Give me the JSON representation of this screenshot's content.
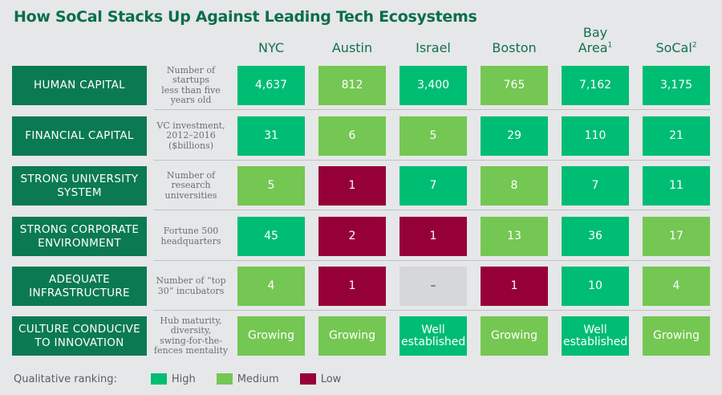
{
  "title": "How SoCal Stacks Up Against Leading Tech Ecosystems",
  "colors": {
    "high": "#00bd74",
    "medium": "#74c752",
    "low": "#960039",
    "none": "#d6d7d8",
    "label_bg": "#0b7a52",
    "title": "#0a6e4b"
  },
  "columns": [
    {
      "line1": "",
      "line2": "NYC",
      "sup": ""
    },
    {
      "line1": "",
      "line2": "Austin",
      "sup": ""
    },
    {
      "line1": "",
      "line2": "Israel",
      "sup": ""
    },
    {
      "line1": "",
      "line2": "Boston",
      "sup": ""
    },
    {
      "line1": "Bay",
      "line2": "Area",
      "sup": "1"
    },
    {
      "line1": "",
      "line2": "SoCal",
      "sup": "2"
    }
  ],
  "rows": [
    {
      "label_lines": [
        "HUMAN CAPITAL"
      ],
      "desc_lines": [
        "Number of",
        "startups",
        "less than five",
        "years old"
      ],
      "cells": [
        {
          "value": "4,637",
          "rank": "high"
        },
        {
          "value": "812",
          "rank": "medium"
        },
        {
          "value": "3,400",
          "rank": "high"
        },
        {
          "value": "765",
          "rank": "medium"
        },
        {
          "value": "7,162",
          "rank": "high"
        },
        {
          "value": "3,175",
          "rank": "high"
        }
      ]
    },
    {
      "label_lines": [
        "FINANCIAL CAPITAL"
      ],
      "desc_lines": [
        "VC investment,",
        "2012–2016",
        "($billions)"
      ],
      "cells": [
        {
          "value": "31",
          "rank": "high"
        },
        {
          "value": "6",
          "rank": "medium"
        },
        {
          "value": "5",
          "rank": "medium"
        },
        {
          "value": "29",
          "rank": "high"
        },
        {
          "value": "110",
          "rank": "high"
        },
        {
          "value": "21",
          "rank": "high"
        }
      ]
    },
    {
      "label_lines": [
        "STRONG UNIVERSITY",
        "SYSTEM"
      ],
      "desc_lines": [
        "Number of",
        "research",
        "universities"
      ],
      "cells": [
        {
          "value": "5",
          "rank": "medium"
        },
        {
          "value": "1",
          "rank": "low"
        },
        {
          "value": "7",
          "rank": "high"
        },
        {
          "value": "8",
          "rank": "medium"
        },
        {
          "value": "7",
          "rank": "high"
        },
        {
          "value": "11",
          "rank": "high"
        }
      ]
    },
    {
      "label_lines": [
        "STRONG CORPORATE",
        "ENVIRONMENT"
      ],
      "desc_lines": [
        "Fortune 500",
        "headquarters"
      ],
      "cells": [
        {
          "value": "45",
          "rank": "high"
        },
        {
          "value": "2",
          "rank": "low"
        },
        {
          "value": "1",
          "rank": "low"
        },
        {
          "value": "13",
          "rank": "medium"
        },
        {
          "value": "36",
          "rank": "high"
        },
        {
          "value": "17",
          "rank": "medium"
        }
      ]
    },
    {
      "label_lines": [
        "ADEQUATE",
        "INFRASTRUCTURE"
      ],
      "desc_lines": [
        "Number of “top",
        "30” incubators"
      ],
      "cells": [
        {
          "value": "4",
          "rank": "medium"
        },
        {
          "value": "1",
          "rank": "low"
        },
        {
          "value": "–",
          "rank": "none"
        },
        {
          "value": "1",
          "rank": "low"
        },
        {
          "value": "10",
          "rank": "high"
        },
        {
          "value": "4",
          "rank": "medium"
        }
      ]
    },
    {
      "label_lines": [
        "CULTURE CONDUCIVE",
        "TO INNOVATION"
      ],
      "desc_lines": [
        "Hub maturity,",
        "diversity,",
        "swing-for-the-",
        "fences mentality"
      ],
      "cells": [
        {
          "value": "Growing",
          "rank": "medium"
        },
        {
          "value": "Growing",
          "rank": "medium"
        },
        {
          "value": "Well established",
          "rank": "high"
        },
        {
          "value": "Growing",
          "rank": "medium"
        },
        {
          "value": "Well established",
          "rank": "high"
        },
        {
          "value": "Growing",
          "rank": "medium"
        }
      ]
    }
  ],
  "legend": {
    "title": "Qualitative ranking:",
    "items": [
      {
        "key": "high",
        "label": "High"
      },
      {
        "key": "medium",
        "label": "Medium"
      },
      {
        "key": "low",
        "label": "Low"
      }
    ]
  },
  "chart_data": {
    "type": "table",
    "title": "How SoCal Stacks Up Against Leading Tech Ecosystems",
    "columns": [
      "NYC",
      "Austin",
      "Israel",
      "Boston",
      "Bay Area¹",
      "SoCal²"
    ],
    "rows": [
      {
        "factor": "HUMAN CAPITAL",
        "metric": "Number of startups less than five years old",
        "values": [
          "4,637",
          "812",
          "3,400",
          "765",
          "7,162",
          "3,175"
        ],
        "ranking": [
          "High",
          "Medium",
          "High",
          "Medium",
          "High",
          "High"
        ]
      },
      {
        "factor": "FINANCIAL CAPITAL",
        "metric": "VC investment, 2012–2016 ($billions)",
        "values": [
          "31",
          "6",
          "5",
          "29",
          "110",
          "21"
        ],
        "ranking": [
          "High",
          "Medium",
          "Medium",
          "High",
          "High",
          "High"
        ]
      },
      {
        "factor": "STRONG UNIVERSITY SYSTEM",
        "metric": "Number of research universities",
        "values": [
          "5",
          "1",
          "7",
          "8",
          "7",
          "11"
        ],
        "ranking": [
          "Medium",
          "Low",
          "High",
          "Medium",
          "High",
          "High"
        ]
      },
      {
        "factor": "STRONG CORPORATE ENVIRONMENT",
        "metric": "Fortune 500 headquarters",
        "values": [
          "45",
          "2",
          "1",
          "13",
          "36",
          "17"
        ],
        "ranking": [
          "High",
          "Low",
          "Low",
          "Medium",
          "High",
          "Medium"
        ]
      },
      {
        "factor": "ADEQUATE INFRASTRUCTURE",
        "metric": "Number of “top 30” incubators",
        "values": [
          "4",
          "1",
          "–",
          "1",
          "10",
          "4"
        ],
        "ranking": [
          "Medium",
          "Low",
          "None",
          "Low",
          "High",
          "Medium"
        ]
      },
      {
        "factor": "CULTURE CONDUCIVE TO INNOVATION",
        "metric": "Hub maturity, diversity, swing-for-the-fences mentality",
        "values": [
          "Growing",
          "Growing",
          "Well established",
          "Growing",
          "Well established",
          "Growing"
        ],
        "ranking": [
          "Medium",
          "Medium",
          "High",
          "Medium",
          "High",
          "Medium"
        ]
      }
    ],
    "legend": [
      "High",
      "Medium",
      "Low"
    ],
    "legend_title": "Qualitative ranking:",
    "legend_position": "bottom-left"
  }
}
